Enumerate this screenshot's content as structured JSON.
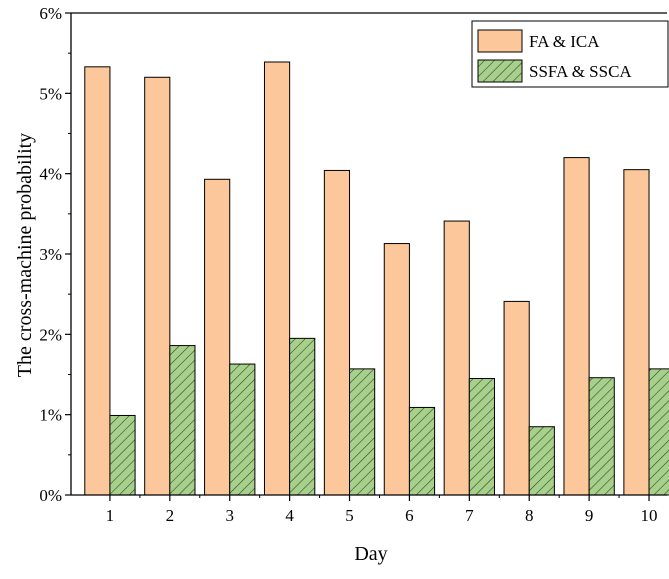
{
  "chart_data": {
    "type": "bar",
    "title": "",
    "xlabel": "Day",
    "ylabel": "The cross-machine probability",
    "categories": [
      "1",
      "2",
      "3",
      "4",
      "5",
      "6",
      "7",
      "8",
      "9",
      "10"
    ],
    "ylim": [
      0,
      6
    ],
    "yticks": [
      0,
      1,
      2,
      3,
      4,
      5,
      6
    ],
    "ytick_labels": [
      "0%",
      "1%",
      "2%",
      "3%",
      "4%",
      "5%",
      "6%"
    ],
    "y_unit": "%",
    "grid": false,
    "legend_position": "top-right",
    "series": [
      {
        "name": "FA & ICA",
        "values": [
          5.33,
          5.2,
          3.93,
          5.39,
          4.04,
          3.13,
          3.41,
          2.41,
          4.2,
          4.05
        ],
        "color": "#fcc79a",
        "pattern": "solid"
      },
      {
        "name": "SSFA & SSCA",
        "values": [
          0.99,
          1.86,
          1.63,
          1.95,
          1.57,
          1.09,
          1.45,
          0.85,
          1.46,
          1.57
        ],
        "color": "#a8d08d",
        "pattern": "hatched"
      }
    ]
  }
}
